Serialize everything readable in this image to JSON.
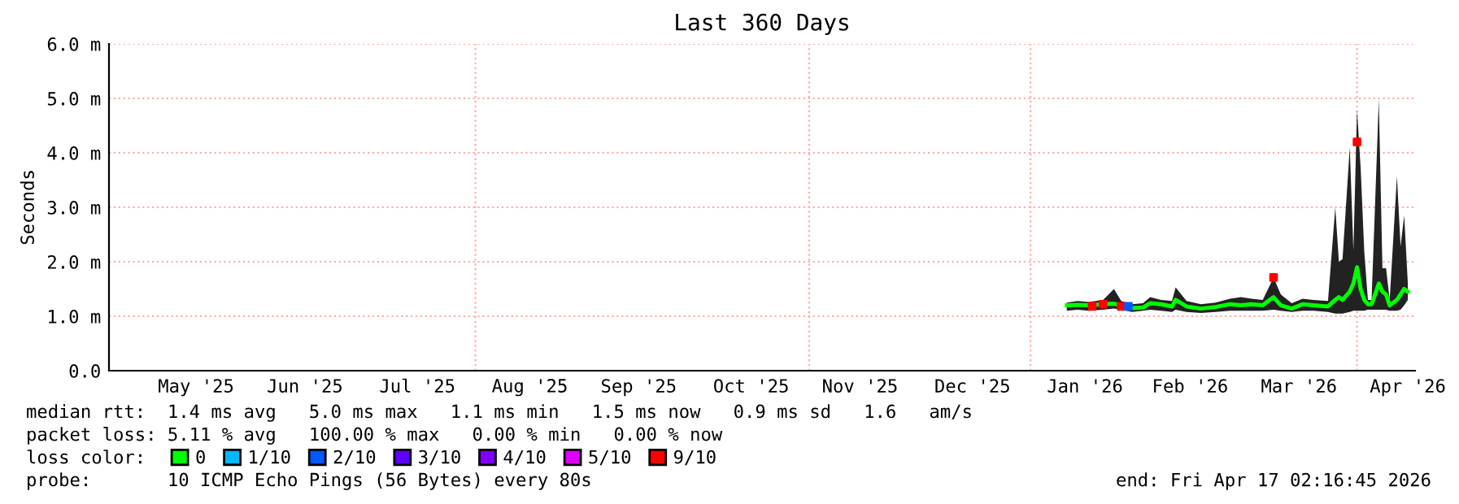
{
  "chart_data": {
    "type": "line",
    "title": "Last 360 Days",
    "ylabel": "Seconds",
    "xlim": [
      "2025-04-22",
      "2026-04-17"
    ],
    "xticks": [
      {
        "value": "2025-05-16",
        "label": "May '25"
      },
      {
        "value": "2025-06-15",
        "label": "Jun '25"
      },
      {
        "value": "2025-07-16",
        "label": "Jul '25"
      },
      {
        "value": "2025-08-16",
        "label": "Aug '25"
      },
      {
        "value": "2025-09-15",
        "label": "Sep '25"
      },
      {
        "value": "2025-10-16",
        "label": "Oct '25"
      },
      {
        "value": "2025-11-15",
        "label": "Nov '25"
      },
      {
        "value": "2025-12-16",
        "label": "Dec '25"
      },
      {
        "value": "2026-01-16",
        "label": "Jan '26"
      },
      {
        "value": "2026-02-14",
        "label": "Feb '26"
      },
      {
        "value": "2026-03-16",
        "label": "Mar '26"
      },
      {
        "value": "2026-04-15",
        "label": "Apr '26"
      }
    ],
    "ylim": [
      0,
      6
    ],
    "yticks": [
      {
        "value": 0,
        "label": "0.0"
      },
      {
        "value": 1,
        "label": "1.0 m"
      },
      {
        "value": 2,
        "label": "2.0 m"
      },
      {
        "value": 3,
        "label": "3.0 m"
      },
      {
        "value": 4,
        "label": "4.0 m"
      },
      {
        "value": 5,
        "label": "5.0 m"
      },
      {
        "value": 6,
        "label": "6.0 m"
      }
    ],
    "grid": "y",
    "ref_lines": [
      {
        "axis": "x",
        "value": "2025-08-01",
        "color": "#ffaaaa",
        "line_style": "dotted"
      },
      {
        "axis": "x",
        "value": "2025-11-01",
        "color": "#ffaaaa",
        "line_style": "dotted"
      },
      {
        "axis": "x",
        "value": "2026-01-01",
        "color": "#ffaaaa",
        "line_style": "dotted"
      },
      {
        "axis": "x",
        "value": "2026-04-01",
        "color": "#ffaaaa",
        "line_style": "dotted"
      }
    ],
    "legend": "bottom",
    "legend_title": "loss color:",
    "series": [
      {
        "name": "0",
        "color": "#00ff00",
        "x": [
          "2026-01-11",
          "2026-01-14",
          "2026-01-17",
          "2026-01-21",
          "2026-01-24",
          "2026-01-26",
          "2026-01-29",
          "2026-02-01",
          "2026-02-03",
          "2026-02-06",
          "2026-02-09",
          "2026-02-10",
          "2026-02-13",
          "2026-02-17",
          "2026-02-21",
          "2026-02-25",
          "2026-02-28",
          "2026-03-03",
          "2026-03-06",
          "2026-03-09",
          "2026-03-11",
          "2026-03-14",
          "2026-03-17",
          "2026-03-20",
          "2026-03-24",
          "2026-03-26",
          "2026-03-27",
          "2026-03-28",
          "2026-03-30",
          "2026-03-31",
          "2026-04-01",
          "2026-04-02",
          "2026-04-03",
          "2026-04-04",
          "2026-04-05",
          "2026-04-06",
          "2026-04-07",
          "2026-04-08",
          "2026-04-09",
          "2026-04-10",
          "2026-04-12",
          "2026-04-13",
          "2026-04-14",
          "2026-04-15"
        ],
        "values": [
          1.2,
          1.21,
          1.2,
          1.22,
          1.23,
          1.2,
          1.15,
          1.16,
          1.24,
          1.22,
          1.18,
          1.3,
          1.18,
          1.14,
          1.17,
          1.22,
          1.2,
          1.22,
          1.2,
          1.35,
          1.2,
          1.14,
          1.22,
          1.2,
          1.18,
          1.3,
          1.35,
          1.3,
          1.45,
          1.6,
          1.9,
          1.5,
          1.3,
          1.22,
          1.22,
          1.4,
          1.6,
          1.45,
          1.4,
          1.2,
          1.3,
          1.4,
          1.5,
          1.45
        ],
        "lower": [
          1.1,
          1.12,
          1.1,
          1.12,
          1.14,
          1.12,
          1.08,
          1.1,
          1.12,
          1.1,
          1.08,
          1.12,
          1.08,
          1.06,
          1.08,
          1.1,
          1.1,
          1.1,
          1.1,
          1.12,
          1.1,
          1.08,
          1.1,
          1.1,
          1.08,
          1.05,
          1.05,
          1.05,
          1.08,
          1.1,
          1.1,
          1.1,
          1.1,
          1.12,
          1.12,
          1.12,
          1.12,
          1.12,
          1.12,
          1.1,
          1.1,
          1.12,
          1.2,
          1.3
        ],
        "upper": [
          1.25,
          1.28,
          1.26,
          1.3,
          1.5,
          1.28,
          1.22,
          1.24,
          1.35,
          1.3,
          1.28,
          1.53,
          1.28,
          1.22,
          1.25,
          1.32,
          1.35,
          1.32,
          1.3,
          1.71,
          1.4,
          1.24,
          1.32,
          1.3,
          1.28,
          3.0,
          2.0,
          2.05,
          4.1,
          2.2,
          4.79,
          3.72,
          2.18,
          1.3,
          1.3,
          3.1,
          4.99,
          1.88,
          1.88,
          1.3,
          3.57,
          2.28,
          2.85,
          1.6
        ]
      },
      {
        "name": "1/10",
        "type": "scatter",
        "color": "#00b8ff"
      },
      {
        "name": "2/10",
        "type": "scatter",
        "color": "#0059ff",
        "x": [
          "2026-01-28"
        ],
        "values": [
          1.18
        ]
      },
      {
        "name": "3/10",
        "type": "scatter",
        "color": "#5e00ff"
      },
      {
        "name": "4/10",
        "type": "scatter",
        "color": "#7e00ff"
      },
      {
        "name": "5/10",
        "type": "scatter",
        "color": "#dd00ff"
      },
      {
        "name": "9/10",
        "type": "scatter",
        "color": "#ff0000",
        "x": [
          "2026-01-18",
          "2026-01-21",
          "2026-01-26",
          "2026-03-09",
          "2026-04-01"
        ],
        "values": [
          1.18,
          1.22,
          1.18,
          1.71,
          4.2
        ]
      }
    ],
    "annotations": [
      "median rtt:  1.4 ms avg   5.0 ms max   1.1 ms min   1.5 ms now   0.9 ms sd   1.6   am/s",
      "packet loss: 5.11 % avg   100.00 % max   0.00 % min   0.00 % now",
      "probe:       10 ICMP Echo Pings (56 Bytes) every 80s",
      "end: Fri Apr 17 02:16:45 2026"
    ]
  }
}
